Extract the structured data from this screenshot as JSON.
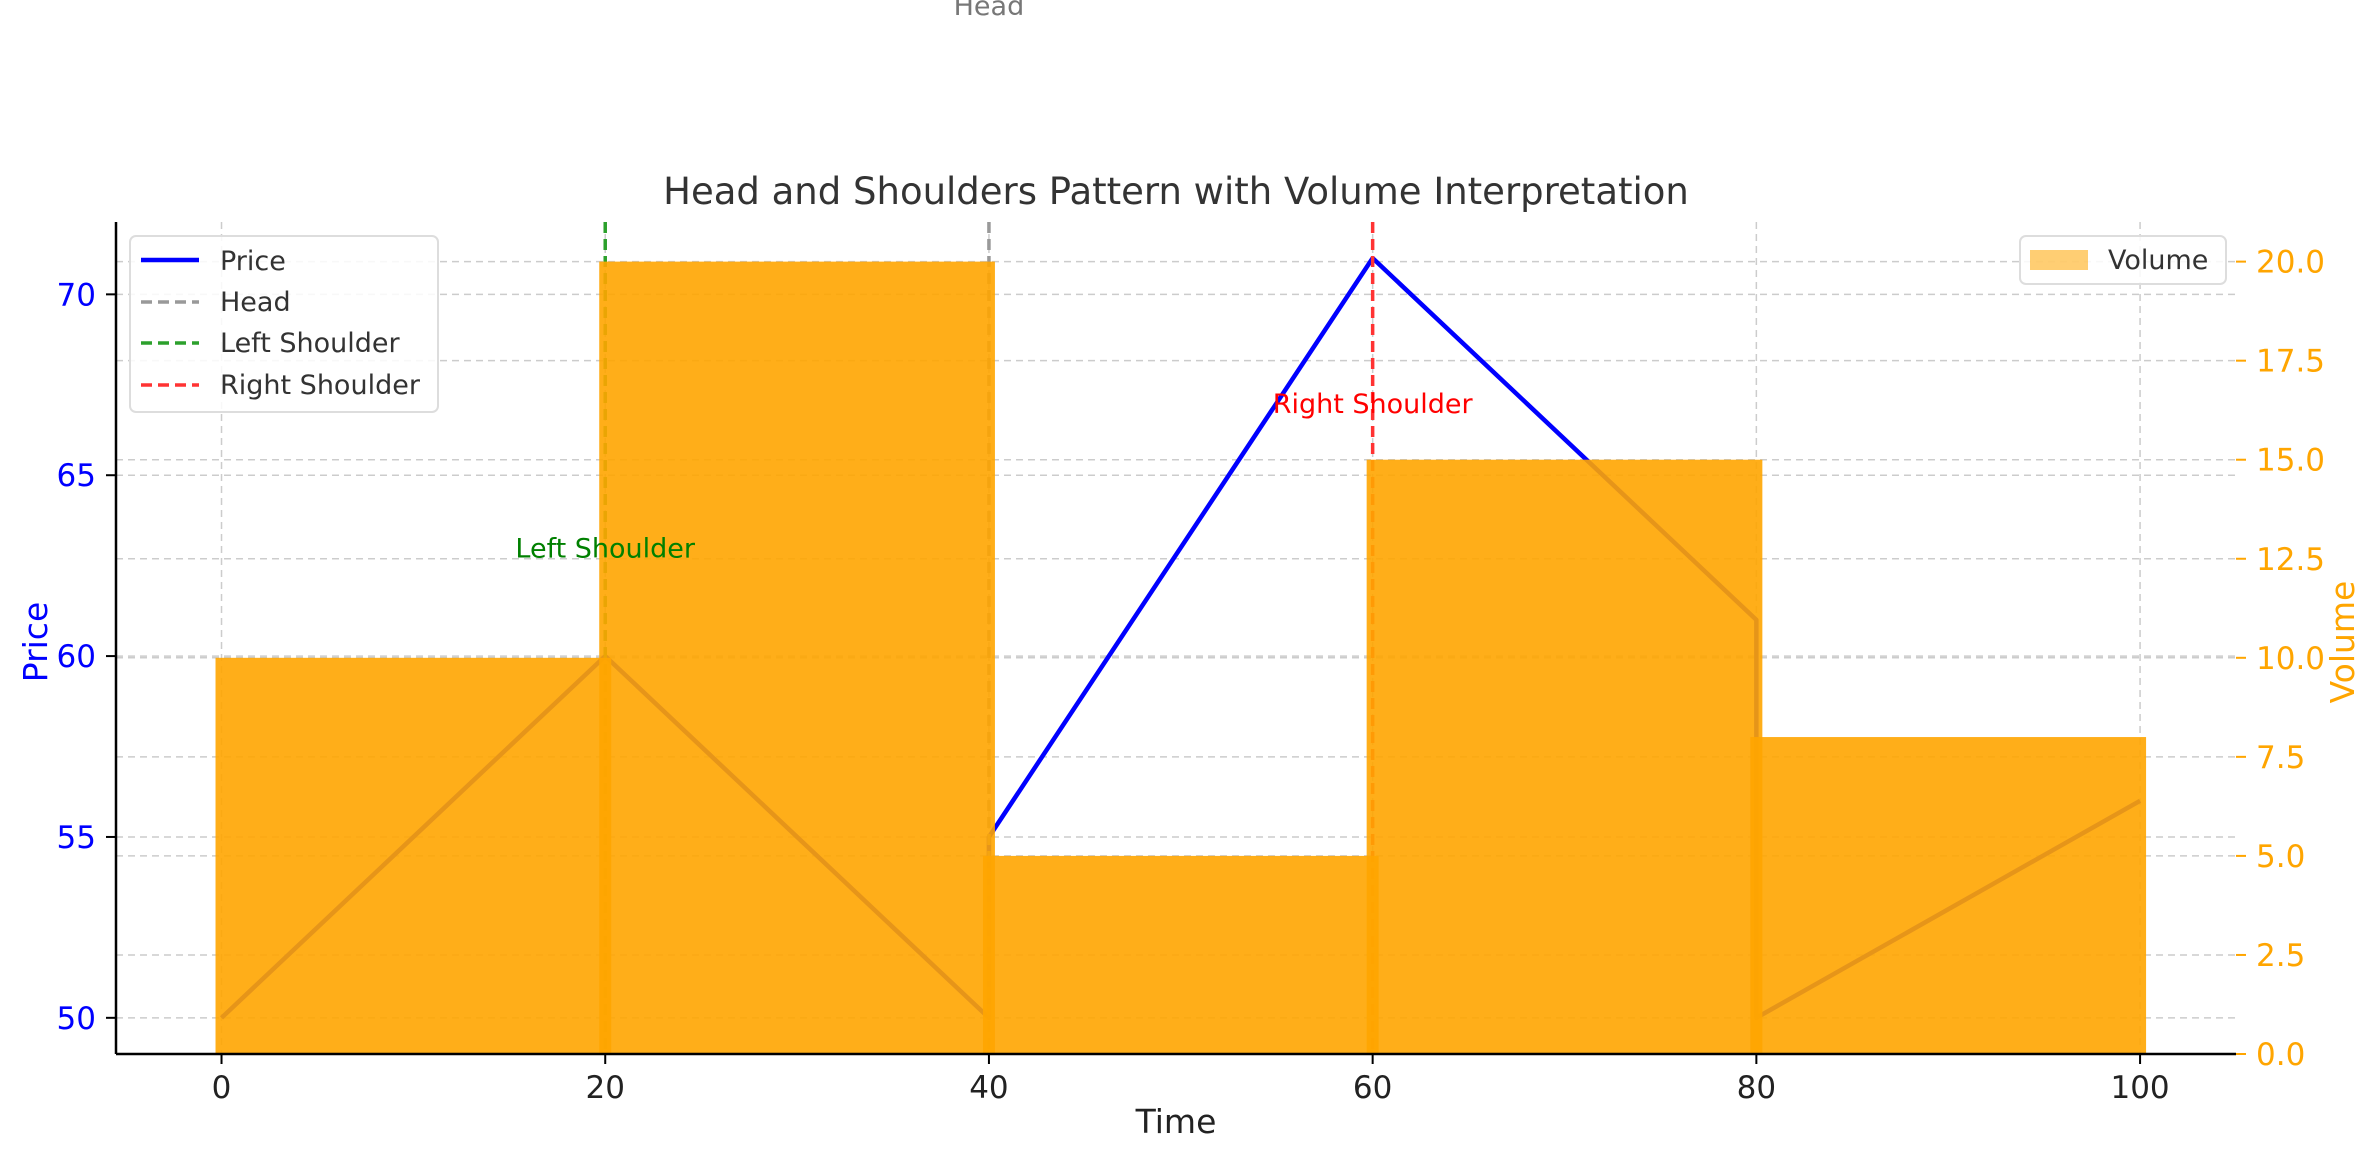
{
  "chart_data": {
    "type": "line",
    "title": "Head and Shoulders Pattern with Volume Interpretation",
    "xlabel": "Time",
    "ylabel": "Price",
    "y2label": "Volume",
    "xlim": [
      -5.5,
      105
    ],
    "ylim": [
      49,
      72
    ],
    "y2lim": [
      0,
      21
    ],
    "xticks": [
      0,
      20,
      40,
      60,
      80,
      100
    ],
    "yticks": [
      50,
      55,
      60,
      65,
      70
    ],
    "y2ticks": [
      "0.0",
      "2.5",
      "5.0",
      "7.5",
      "10.0",
      "12.5",
      "15.0",
      "17.5",
      "20.0"
    ],
    "grid": true,
    "price": {
      "name": "Price",
      "color": "#0000ff",
      "x": [
        0,
        20,
        40,
        40,
        60,
        80,
        80,
        100
      ],
      "y": [
        50,
        60,
        50,
        55,
        71,
        61,
        50,
        56
      ]
    },
    "volume": {
      "name": "Volume",
      "color": "#ffa500",
      "bars": [
        {
          "x0": 0,
          "x1": 20,
          "value": 10
        },
        {
          "x0": 20,
          "x1": 40,
          "value": 20
        },
        {
          "x0": 40,
          "x1": 60,
          "value": 5
        },
        {
          "x0": 60,
          "x1": 80,
          "value": 15
        },
        {
          "x0": 80,
          "x1": 100,
          "value": 8
        }
      ]
    },
    "vlines": [
      {
        "name": "Head",
        "x": 40,
        "color": "#999999"
      },
      {
        "name": "Left Shoulder",
        "x": 20,
        "color": "#2ca02c"
      },
      {
        "name": "Right Shoulder",
        "x": 60,
        "color": "#ff3333"
      }
    ],
    "annotations": [
      {
        "text": "Head",
        "x": 40,
        "y": 78,
        "color": "#777777"
      },
      {
        "text": "Left Shoulder",
        "x": 20,
        "y": 63,
        "color": "#008000"
      },
      {
        "text": "Right Shoulder",
        "x": 60,
        "y": 67,
        "color": "#ff0000"
      }
    ],
    "legend_left": {
      "placement": "top-left",
      "entries": [
        "Price",
        "Head",
        "Left Shoulder",
        "Right Shoulder"
      ]
    },
    "legend_right": {
      "placement": "top-right",
      "entries": [
        "Volume"
      ]
    },
    "colors": {
      "price_axis": "#0000ff",
      "volume_axis": "#ffa500",
      "grid": "#cccccc"
    }
  }
}
